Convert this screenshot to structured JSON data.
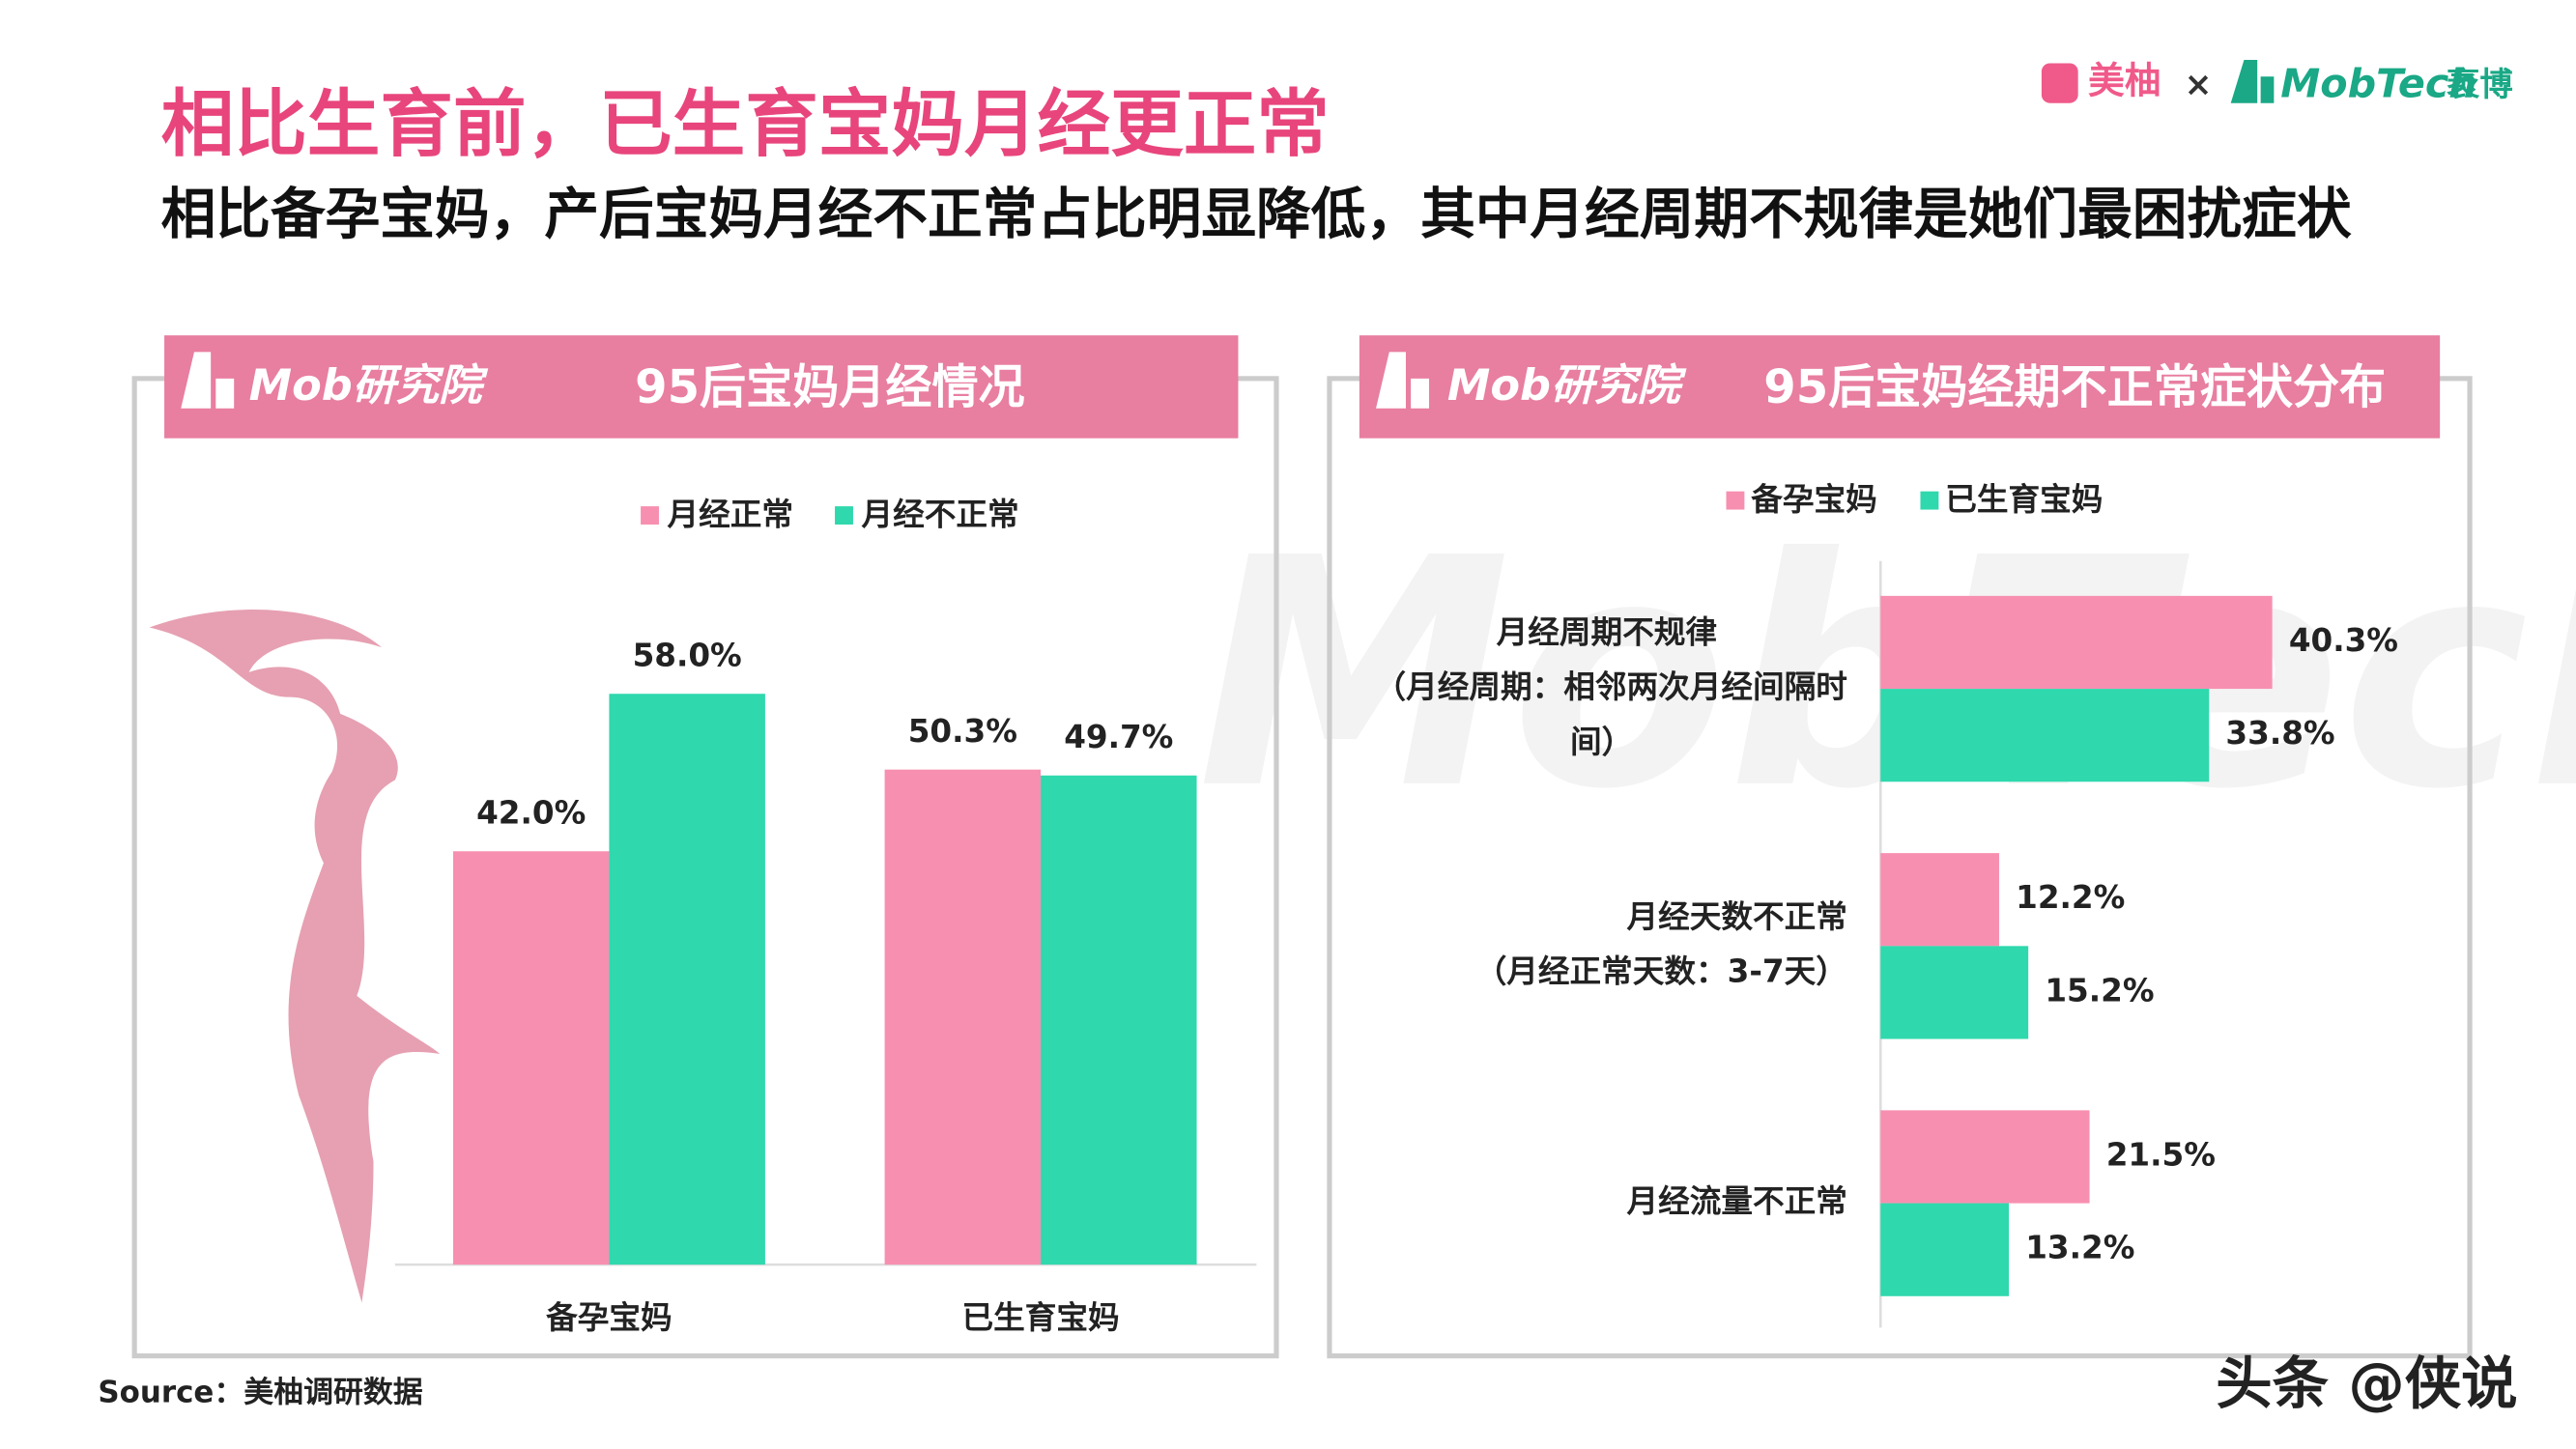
{
  "header": {
    "title": "相比生育前，已生育宝妈月经更正常",
    "subtitle": "相比备孕宝妈，产后宝妈月经不正常占比明显降低，其中月经周期不规律是她们最困扰症状",
    "logo_meiyou": "美柚",
    "logo_x": "×",
    "logo_mobtech": "MobTech",
    "logo_mobtech_cn": "袤博"
  },
  "chart_data": [
    {
      "type": "bar",
      "brand": "Mob研究院",
      "title": "95后宝妈月经情况",
      "categories": [
        "备孕宝妈",
        "已生育宝妈"
      ],
      "series": [
        {
          "name": "月经正常",
          "color": "#f78fb0",
          "values": [
            42.0,
            50.3
          ],
          "value_labels": [
            "42.0%",
            "50.3%"
          ]
        },
        {
          "name": "月经不正常",
          "color": "#2fd8ad",
          "values": [
            58.0,
            49.7
          ],
          "value_labels": [
            "58.0%",
            "49.7%"
          ]
        }
      ]
    },
    {
      "type": "hbar",
      "brand": "Mob研究院",
      "title": "95后宝妈经期不正常症状分布",
      "categories": [
        [
          "月经周期不规律",
          "（月经周期：相邻两次月经间隔时",
          "间）"
        ],
        [
          "月经天数不正常",
          "（月经正常天数：3-7天）"
        ],
        [
          "月经流量不正常"
        ]
      ],
      "series": [
        {
          "name": "备孕宝妈",
          "color": "#f78fb0",
          "values": [
            40.3,
            12.2,
            21.5
          ],
          "value_labels": [
            "40.3%",
            "12.2%",
            "21.5%"
          ]
        },
        {
          "name": "已生育宝妈",
          "color": "#2fd8ad",
          "values": [
            33.8,
            15.2,
            13.2
          ],
          "value_labels": [
            "33.8%",
            "15.2%",
            "13.2%"
          ]
        }
      ]
    }
  ],
  "source": "Source：美柚调研数据",
  "watermark": "头条 @侠说"
}
